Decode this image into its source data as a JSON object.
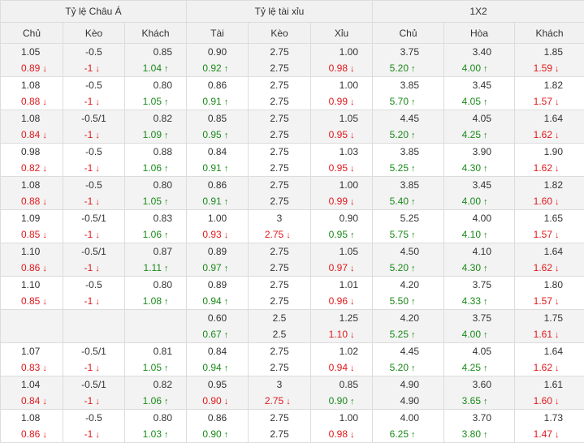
{
  "headers": {
    "groups": [
      "Tỷ lệ Châu Á",
      "Tỷ lệ tài xỉu",
      "1X2"
    ],
    "columns": [
      "Chủ",
      "Kèo",
      "Khách",
      "Tài",
      "Kèo",
      "Xỉu",
      "Chủ",
      "Hòa",
      "Khách"
    ]
  },
  "icons": {
    "up": "arrow-up-icon",
    "down": "arrow-down-icon"
  },
  "colors": {
    "up": "#1a8a1a",
    "down": "#e0191c",
    "header_bg": "#f1f1f1",
    "alt_row_bg": "#f3f3f3"
  },
  "rows": [
    [
      [
        "1.05",
        "0.89"
      ],
      [
        "-0.5",
        "-1"
      ],
      [
        "0.85",
        "1.04"
      ],
      [
        "0.90",
        "0.92"
      ],
      [
        "2.75",
        "2.75"
      ],
      [
        "1.00",
        "0.98"
      ],
      [
        "3.75",
        "5.20"
      ],
      [
        "3.40",
        "4.00"
      ],
      [
        "1.85",
        "1.59"
      ]
    ],
    [
      [
        "1.08",
        "0.88"
      ],
      [
        "-0.5",
        "-1"
      ],
      [
        "0.80",
        "1.05"
      ],
      [
        "0.86",
        "0.91"
      ],
      [
        "2.75",
        "2.75"
      ],
      [
        "1.00",
        "0.99"
      ],
      [
        "3.85",
        "5.70"
      ],
      [
        "3.45",
        "4.05"
      ],
      [
        "1.82",
        "1.57"
      ]
    ],
    [
      [
        "1.08",
        "0.84"
      ],
      [
        "-0.5/1",
        "-1"
      ],
      [
        "0.82",
        "1.09"
      ],
      [
        "0.85",
        "0.95"
      ],
      [
        "2.75",
        "2.75"
      ],
      [
        "1.05",
        "0.95"
      ],
      [
        "4.45",
        "5.20"
      ],
      [
        "4.05",
        "4.25"
      ],
      [
        "1.64",
        "1.62"
      ]
    ],
    [
      [
        "0.98",
        "0.82"
      ],
      [
        "-0.5",
        "-1"
      ],
      [
        "0.88",
        "1.06"
      ],
      [
        "0.84",
        "0.91"
      ],
      [
        "2.75",
        "2.75"
      ],
      [
        "1.03",
        "0.95"
      ],
      [
        "3.85",
        "5.25"
      ],
      [
        "3.90",
        "4.30"
      ],
      [
        "1.90",
        "1.62"
      ]
    ],
    [
      [
        "1.08",
        "0.88"
      ],
      [
        "-0.5",
        "-1"
      ],
      [
        "0.80",
        "1.05"
      ],
      [
        "0.86",
        "0.91"
      ],
      [
        "2.75",
        "2.75"
      ],
      [
        "1.00",
        "0.99"
      ],
      [
        "3.85",
        "5.40"
      ],
      [
        "3.45",
        "4.00"
      ],
      [
        "1.82",
        "1.60"
      ]
    ],
    [
      [
        "1.09",
        "0.85"
      ],
      [
        "-0.5/1",
        "-1"
      ],
      [
        "0.83",
        "1.06"
      ],
      [
        "1.00",
        "0.93"
      ],
      [
        "3",
        "2.75"
      ],
      [
        "0.90",
        "0.95"
      ],
      [
        "5.25",
        "5.75"
      ],
      [
        "4.00",
        "4.10"
      ],
      [
        "1.65",
        "1.57"
      ]
    ],
    [
      [
        "1.10",
        "0.86"
      ],
      [
        "-0.5/1",
        "-1"
      ],
      [
        "0.87",
        "1.11"
      ],
      [
        "0.89",
        "0.97"
      ],
      [
        "2.75",
        "2.75"
      ],
      [
        "1.05",
        "0.97"
      ],
      [
        "4.50",
        "5.20"
      ],
      [
        "4.10",
        "4.30"
      ],
      [
        "1.64",
        "1.62"
      ]
    ],
    [
      [
        "1.10",
        "0.85"
      ],
      [
        "-0.5",
        "-1"
      ],
      [
        "0.80",
        "1.08"
      ],
      [
        "0.89",
        "0.94"
      ],
      [
        "2.75",
        "2.75"
      ],
      [
        "1.01",
        "0.96"
      ],
      [
        "4.20",
        "5.50"
      ],
      [
        "3.75",
        "4.33"
      ],
      [
        "1.80",
        "1.57"
      ]
    ],
    [
      [
        "",
        ""
      ],
      [
        "",
        ""
      ],
      [
        "",
        ""
      ],
      [
        "0.60",
        "0.67"
      ],
      [
        "2.5",
        "2.5"
      ],
      [
        "1.25",
        "1.10"
      ],
      [
        "4.20",
        "5.25"
      ],
      [
        "3.75",
        "4.00"
      ],
      [
        "1.75",
        "1.61"
      ]
    ],
    [
      [
        "1.07",
        "0.83"
      ],
      [
        "-0.5/1",
        "-1"
      ],
      [
        "0.81",
        "1.05"
      ],
      [
        "0.84",
        "0.94"
      ],
      [
        "2.75",
        "2.75"
      ],
      [
        "1.02",
        "0.94"
      ],
      [
        "4.45",
        "5.20"
      ],
      [
        "4.05",
        "4.25"
      ],
      [
        "1.64",
        "1.62"
      ]
    ],
    [
      [
        "1.04",
        "0.84"
      ],
      [
        "-0.5/1",
        "-1"
      ],
      [
        "0.82",
        "1.06"
      ],
      [
        "0.95",
        "0.90"
      ],
      [
        "3",
        "2.75"
      ],
      [
        "0.85",
        "0.90"
      ],
      [
        "4.90",
        "4.90"
      ],
      [
        "3.60",
        "3.65"
      ],
      [
        "1.61",
        "1.60"
      ]
    ],
    [
      [
        "1.08",
        "0.86"
      ],
      [
        "-0.5",
        "-1"
      ],
      [
        "0.80",
        "1.03"
      ],
      [
        "0.86",
        "0.90"
      ],
      [
        "2.75",
        "2.75"
      ],
      [
        "1.00",
        "0.98"
      ],
      [
        "4.00",
        "6.25"
      ],
      [
        "3.70",
        "3.80"
      ],
      [
        "1.73",
        "1.47"
      ]
    ]
  ],
  "trends": [
    [
      "down",
      "down",
      "up",
      "up",
      "",
      "down",
      "up",
      "up",
      "down"
    ],
    [
      "down",
      "down",
      "up",
      "up",
      "",
      "down",
      "up",
      "up",
      "down"
    ],
    [
      "down",
      "down",
      "up",
      "up",
      "",
      "down",
      "up",
      "up",
      "down"
    ],
    [
      "down",
      "down",
      "up",
      "up",
      "",
      "down",
      "up",
      "up",
      "down"
    ],
    [
      "down",
      "down",
      "up",
      "up",
      "",
      "down",
      "up",
      "up",
      "down"
    ],
    [
      "down",
      "down",
      "up",
      "down",
      "down",
      "up",
      "up",
      "up",
      "down"
    ],
    [
      "down",
      "down",
      "up",
      "up",
      "",
      "down",
      "up",
      "up",
      "down"
    ],
    [
      "down",
      "down",
      "up",
      "up",
      "",
      "down",
      "up",
      "up",
      "down"
    ],
    [
      "",
      "",
      "",
      "up",
      "",
      "down",
      "up",
      "up",
      "down"
    ],
    [
      "down",
      "down",
      "up",
      "up",
      "",
      "down",
      "up",
      "up",
      "down"
    ],
    [
      "down",
      "down",
      "up",
      "down",
      "down",
      "up",
      "",
      "up",
      "down"
    ],
    [
      "down",
      "down",
      "up",
      "up",
      "",
      "down",
      "up",
      "up",
      "down"
    ]
  ]
}
